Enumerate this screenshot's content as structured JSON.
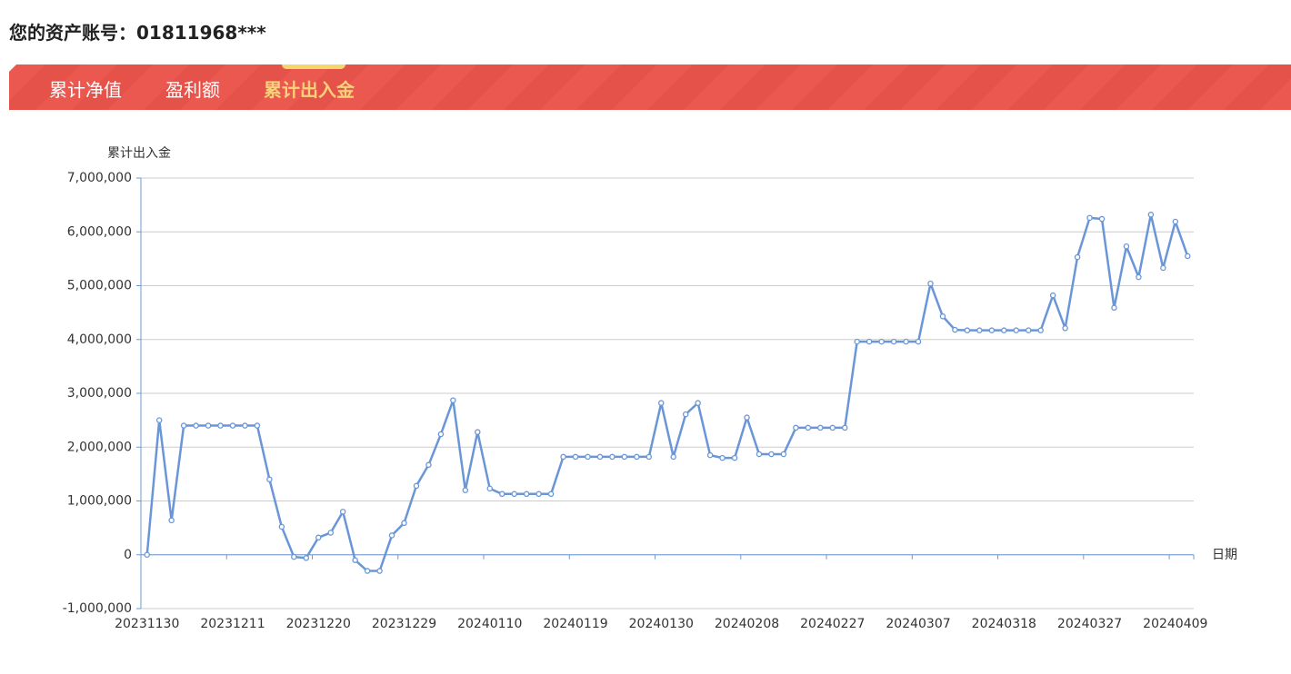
{
  "header": {
    "title": "您的资产账号：01811968***"
  },
  "tabs": [
    "累计净值",
    "盈利额",
    "累计出入金"
  ],
  "active_tab": 2,
  "chart_data": {
    "type": "line",
    "y_axis_label": "累计出入金",
    "x_axis_label": "日期",
    "categories": [
      "20231130",
      null,
      null,
      null,
      null,
      null,
      null,
      "20231211",
      null,
      null,
      null,
      null,
      null,
      null,
      "20231220",
      null,
      null,
      null,
      null,
      null,
      null,
      "20231229",
      null,
      null,
      null,
      null,
      null,
      null,
      "20240110",
      null,
      null,
      null,
      null,
      null,
      null,
      "20240119",
      null,
      null,
      null,
      null,
      null,
      null,
      "20240130",
      null,
      null,
      null,
      null,
      null,
      null,
      "20240208",
      null,
      null,
      null,
      null,
      null,
      null,
      "20240227",
      null,
      null,
      null,
      null,
      null,
      null,
      "20240307",
      null,
      null,
      null,
      null,
      null,
      null,
      "20240318",
      null,
      null,
      null,
      null,
      null,
      null,
      "20240327",
      null,
      null,
      null,
      null,
      null,
      null,
      "20240409",
      null
    ],
    "series": [
      {
        "name": "累计出入金",
        "color": "#6a96d8",
        "values": [
          0,
          2500000,
          640000,
          2400000,
          2400000,
          2400000,
          2400000,
          2400000,
          2400000,
          2400000,
          1400000,
          520000,
          -40000,
          -60000,
          320000,
          410000,
          800000,
          -100000,
          -300000,
          -300000,
          360000,
          590000,
          1280000,
          1670000,
          2240000,
          2870000,
          1200000,
          2280000,
          1230000,
          1130000,
          1130000,
          1130000,
          1130000,
          1130000,
          1820000,
          1820000,
          1820000,
          1820000,
          1820000,
          1820000,
          1820000,
          1820000,
          2820000,
          1820000,
          2610000,
          2820000,
          1850000,
          1800000,
          1800000,
          2550000,
          1870000,
          1870000,
          1870000,
          2360000,
          2360000,
          2360000,
          2360000,
          2360000,
          3960000,
          3960000,
          3960000,
          3960000,
          3960000,
          3960000,
          5040000,
          4430000,
          4180000,
          4170000,
          4170000,
          4170000,
          4170000,
          4170000,
          4170000,
          4170000,
          4820000,
          4210000,
          5530000,
          6260000,
          6240000,
          4590000,
          5730000,
          5160000,
          6320000,
          5330000,
          6190000,
          5550000
        ]
      }
    ],
    "ylim": [
      -1000000,
      7000000
    ],
    "yticks": [
      {
        "value": -1000000,
        "label": "-1,000,000"
      },
      0,
      {
        "value": 1000000,
        "label": "1,000,000"
      },
      {
        "value": 2000000,
        "label": "2,000,000"
      },
      {
        "value": 3000000,
        "label": "3,000,000"
      },
      {
        "value": 4000000,
        "label": "4,000,000"
      },
      {
        "value": 5000000,
        "label": "5,000,000"
      },
      {
        "value": 6000000,
        "label": "6,000,000"
      },
      {
        "value": 7000000,
        "label": "7,000,000"
      }
    ],
    "grid": true
  }
}
